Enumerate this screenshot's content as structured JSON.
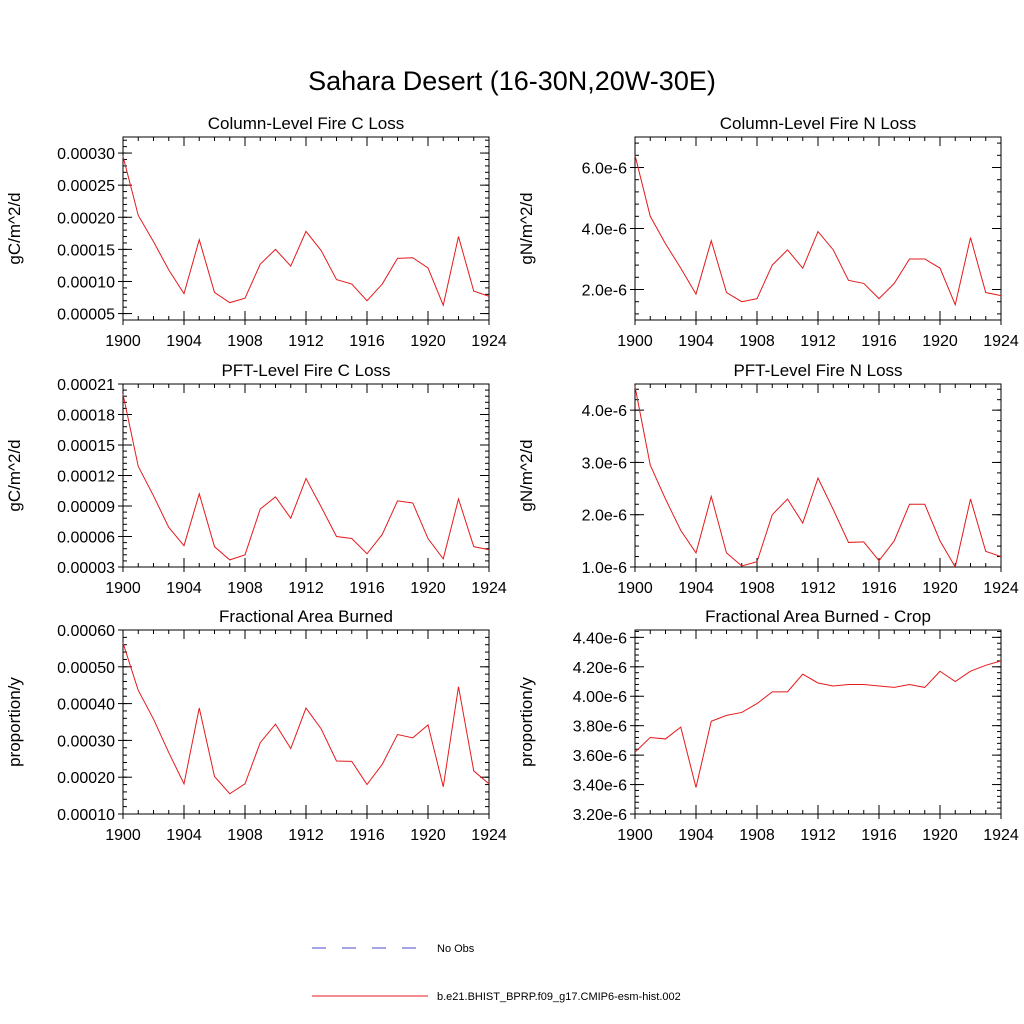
{
  "title": "Sahara Desert (16-30N,20W-30E)",
  "legend": {
    "entries": [
      {
        "label": "No Obs",
        "color": "#4a4acc",
        "style": "dashed"
      },
      {
        "label": "b.e21.BHIST_BPRP.f09_g17.CMIP6-esm-hist.002",
        "color": "#e41a1c",
        "style": "solid"
      }
    ],
    "placement": "bottom-center"
  },
  "chart_data": [
    {
      "type": "line",
      "title": "Column-Level Fire C Loss",
      "ylabel": "gC/m^2/d",
      "xlim": [
        1900,
        1924
      ],
      "ylim": [
        4e-05,
        0.000325
      ],
      "xticks": [
        "1900",
        "1904",
        "1908",
        "1912",
        "1916",
        "1920",
        "1924"
      ],
      "xtick_values": [
        1900,
        1904,
        1908,
        1912,
        1916,
        1920,
        1924
      ],
      "yticks": [
        "0.00005",
        "0.00010",
        "0.00015",
        "0.00020",
        "0.00025",
        "0.00030"
      ],
      "ytick_values": [
        5e-05,
        0.0001,
        0.00015,
        0.0002,
        0.00025,
        0.0003
      ],
      "x": [
        1900,
        1901,
        1902,
        1903,
        1904,
        1905,
        1906,
        1907,
        1908,
        1909,
        1910,
        1911,
        1912,
        1913,
        1914,
        1915,
        1916,
        1917,
        1918,
        1919,
        1920,
        1921,
        1922,
        1923,
        1924
      ],
      "series": [
        {
          "color": "#e41a1c",
          "values": [
            0.000295,
            0.000203,
            0.000162,
            0.000118,
            8.1e-05,
            0.000165,
            8.3e-05,
            6.7e-05,
            7.4e-05,
            0.000127,
            0.00015,
            0.000124,
            0.000178,
            0.000148,
            0.000103,
            9.6e-05,
            7e-05,
            9.6e-05,
            0.000136,
            0.000137,
            0.000121,
            6.3e-05,
            0.00017,
            8.5e-05,
            7.7e-05
          ]
        }
      ]
    },
    {
      "type": "line",
      "title": "Column-Level Fire N Loss",
      "ylabel": "gN/m^2/d",
      "xlim": [
        1900,
        1924
      ],
      "ylim": [
        1e-06,
        7e-06
      ],
      "xticks": [
        "1900",
        "1904",
        "1908",
        "1912",
        "1916",
        "1920",
        "1924"
      ],
      "xtick_values": [
        1900,
        1904,
        1908,
        1912,
        1916,
        1920,
        1924
      ],
      "yticks": [
        "2.0e-6",
        "4.0e-6",
        "6.0e-6"
      ],
      "ytick_values": [
        2e-06,
        4e-06,
        6e-06
      ],
      "x": [
        1900,
        1901,
        1902,
        1903,
        1904,
        1905,
        1906,
        1907,
        1908,
        1909,
        1910,
        1911,
        1912,
        1913,
        1914,
        1915,
        1916,
        1917,
        1918,
        1919,
        1920,
        1921,
        1922,
        1923,
        1924
      ],
      "series": [
        {
          "color": "#e41a1c",
          "values": [
            6.4e-06,
            4.4e-06,
            3.5e-06,
            2.7e-06,
            1.85e-06,
            3.6e-06,
            1.9e-06,
            1.6e-06,
            1.7e-06,
            2.8e-06,
            3.3e-06,
            2.7e-06,
            3.9e-06,
            3.3e-06,
            2.3e-06,
            2.2e-06,
            1.7e-06,
            2.2e-06,
            3e-06,
            3e-06,
            2.7e-06,
            1.5e-06,
            3.7e-06,
            1.9e-06,
            1.8e-06
          ]
        }
      ]
    },
    {
      "type": "line",
      "title": "PFT-Level Fire C Loss",
      "ylabel": "gC/m^2/d",
      "xlim": [
        1900,
        1924
      ],
      "ylim": [
        3e-05,
        0.00021
      ],
      "xticks": [
        "1900",
        "1904",
        "1908",
        "1912",
        "1916",
        "1920",
        "1924"
      ],
      "xtick_values": [
        1900,
        1904,
        1908,
        1912,
        1916,
        1920,
        1924
      ],
      "yticks": [
        "0.00003",
        "0.00006",
        "0.00009",
        "0.00012",
        "0.00015",
        "0.00018",
        "0.00021"
      ],
      "ytick_values": [
        3e-05,
        6e-05,
        9e-05,
        0.00012,
        0.00015,
        0.00018,
        0.00021
      ],
      "x": [
        1900,
        1901,
        1902,
        1903,
        1904,
        1905,
        1906,
        1907,
        1908,
        1909,
        1910,
        1911,
        1912,
        1913,
        1914,
        1915,
        1916,
        1917,
        1918,
        1919,
        1920,
        1921,
        1922,
        1923,
        1924
      ],
      "series": [
        {
          "color": "#e41a1c",
          "values": [
            0.0002,
            0.000129,
            0.0001,
            6.9e-05,
            5.1e-05,
            0.000102,
            5e-05,
            3.7e-05,
            4.2e-05,
            8.7e-05,
            9.9e-05,
            7.8e-05,
            0.000117,
            8.9e-05,
            6e-05,
            5.8e-05,
            4.3e-05,
            6.2e-05,
            9.5e-05,
            9.3e-05,
            5.8e-05,
            3.8e-05,
            9.7e-05,
            5e-05,
            4.7e-05
          ]
        }
      ]
    },
    {
      "type": "line",
      "title": "PFT-Level Fire N Loss",
      "ylabel": "gN/m^2/d",
      "xlim": [
        1900,
        1924
      ],
      "ylim": [
        1e-06,
        4.5e-06
      ],
      "xticks": [
        "1900",
        "1904",
        "1908",
        "1912",
        "1916",
        "1920",
        "1924"
      ],
      "xtick_values": [
        1900,
        1904,
        1908,
        1912,
        1916,
        1920,
        1924
      ],
      "yticks": [
        "1.0e-6",
        "2.0e-6",
        "3.0e-6",
        "4.0e-6"
      ],
      "ytick_values": [
        1e-06,
        2e-06,
        3e-06,
        4e-06
      ],
      "x": [
        1900,
        1901,
        1902,
        1903,
        1904,
        1905,
        1906,
        1907,
        1908,
        1909,
        1910,
        1911,
        1912,
        1913,
        1914,
        1915,
        1916,
        1917,
        1918,
        1919,
        1920,
        1921,
        1922,
        1923,
        1924
      ],
      "series": [
        {
          "color": "#e41a1c",
          "values": [
            4.45e-06,
            2.95e-06,
            2.3e-06,
            1.7e-06,
            1.27e-06,
            2.35e-06,
            1.27e-06,
            1.02e-06,
            1.1e-06,
            2e-06,
            2.3e-06,
            1.84e-06,
            2.7e-06,
            2.1e-06,
            1.47e-06,
            1.48e-06,
            1.12e-06,
            1.5e-06,
            2.2e-06,
            2.2e-06,
            1.5e-06,
            1e-06,
            2.3e-06,
            1.3e-06,
            1.2e-06
          ]
        }
      ]
    },
    {
      "type": "line",
      "title": "Fractional Area Burned",
      "ylabel": "proportion/y",
      "xlim": [
        1900,
        1924
      ],
      "ylim": [
        0.0001,
        0.0006
      ],
      "xticks": [
        "1900",
        "1904",
        "1908",
        "1912",
        "1916",
        "1920",
        "1924"
      ],
      "xtick_values": [
        1900,
        1904,
        1908,
        1912,
        1916,
        1920,
        1924
      ],
      "yticks": [
        "0.00010",
        "0.00020",
        "0.00030",
        "0.00040",
        "0.00050",
        "0.00060"
      ],
      "ytick_values": [
        0.0001,
        0.0002,
        0.0003,
        0.0004,
        0.0005,
        0.0006
      ],
      "x": [
        1900,
        1901,
        1902,
        1903,
        1904,
        1905,
        1906,
        1907,
        1908,
        1909,
        1910,
        1911,
        1912,
        1913,
        1914,
        1915,
        1916,
        1917,
        1918,
        1919,
        1920,
        1921,
        1922,
        1923,
        1924
      ],
      "series": [
        {
          "color": "#e41a1c",
          "values": [
            0.000565,
            0.000436,
            0.000358,
            0.000267,
            0.000182,
            0.000388,
            0.000202,
            0.000155,
            0.000182,
            0.000294,
            0.000344,
            0.000278,
            0.000388,
            0.000331,
            0.000244,
            0.000243,
            0.00018,
            0.000235,
            0.000316,
            0.000307,
            0.000342,
            0.000174,
            0.000446,
            0.000217,
            0.000182
          ]
        }
      ]
    },
    {
      "type": "line",
      "title": "Fractional Area Burned - Crop",
      "ylabel": "proportion/y",
      "xlim": [
        1900,
        1924
      ],
      "ylim": [
        3.2e-06,
        4.45e-06
      ],
      "xticks": [
        "1900",
        "1904",
        "1908",
        "1912",
        "1916",
        "1920",
        "1924"
      ],
      "xtick_values": [
        1900,
        1904,
        1908,
        1912,
        1916,
        1920,
        1924
      ],
      "yticks": [
        "3.20e-6",
        "3.40e-6",
        "3.60e-6",
        "3.80e-6",
        "4.00e-6",
        "4.20e-6",
        "4.40e-6"
      ],
      "ytick_values": [
        3.2e-06,
        3.4e-06,
        3.6e-06,
        3.8e-06,
        4e-06,
        4.2e-06,
        4.4e-06
      ],
      "x": [
        1900,
        1901,
        1902,
        1903,
        1904,
        1905,
        1906,
        1907,
        1908,
        1909,
        1910,
        1911,
        1912,
        1913,
        1914,
        1915,
        1916,
        1917,
        1918,
        1919,
        1920,
        1921,
        1922,
        1923,
        1924
      ],
      "series": [
        {
          "color": "#e41a1c",
          "values": [
            3.62e-06,
            3.72e-06,
            3.71e-06,
            3.79e-06,
            3.38e-06,
            3.83e-06,
            3.87e-06,
            3.89e-06,
            3.95e-06,
            4.03e-06,
            4.03e-06,
            4.15e-06,
            4.09e-06,
            4.07e-06,
            4.08e-06,
            4.08e-06,
            4.07e-06,
            4.06e-06,
            4.08e-06,
            4.06e-06,
            4.17e-06,
            4.1e-06,
            4.17e-06,
            4.21e-06,
            4.24e-06
          ]
        }
      ]
    }
  ]
}
